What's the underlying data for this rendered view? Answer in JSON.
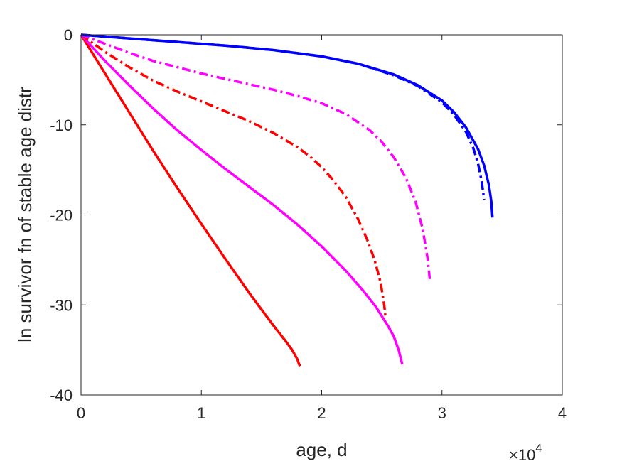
{
  "chart_data": {
    "type": "line",
    "title": "",
    "xlabel": "age, d",
    "ylabel": "ln survivor fn of stable age distr",
    "x_exponent_label": "×10",
    "x_exponent_power": "4",
    "xlim": [
      0,
      40000
    ],
    "ylim": [
      -40,
      0
    ],
    "x_ticks": [
      0,
      10000,
      20000,
      30000,
      40000
    ],
    "x_tick_labels": [
      "0",
      "1",
      "2",
      "3",
      "4"
    ],
    "y_ticks": [
      0,
      -10,
      -20,
      -30,
      -40
    ],
    "y_tick_labels": [
      "0",
      "-10",
      "-20",
      "-30",
      "-40"
    ],
    "grid": false,
    "legend": "none",
    "series": [
      {
        "color": "#ff0000",
        "style": "solid",
        "x": [
          0,
          2000,
          4000,
          6000,
          8000,
          10000,
          12000,
          14000,
          16000,
          17000,
          17500,
          17800,
          18000,
          18100,
          18200
        ],
        "y": [
          0,
          -4.3,
          -8.6,
          -12.9,
          -17.0,
          -21.0,
          -24.9,
          -28.7,
          -32.3,
          -34.0,
          -34.9,
          -35.6,
          -36.1,
          -36.5,
          -36.8
        ]
      },
      {
        "color": "#ff00ff",
        "style": "solid",
        "x": [
          0,
          2000,
          4000,
          6000,
          8000,
          10000,
          12000,
          14000,
          16000,
          18000,
          20000,
          22000,
          23500,
          24500,
          25500,
          26000,
          26400,
          26700
        ],
        "y": [
          0,
          -2.9,
          -5.6,
          -8.2,
          -10.6,
          -12.8,
          -14.9,
          -16.9,
          -18.9,
          -21.1,
          -23.5,
          -26.2,
          -28.5,
          -30.2,
          -32.3,
          -33.5,
          -35.0,
          -36.6
        ]
      },
      {
        "color": "#ff0000",
        "style": "dashdot",
        "x": [
          0,
          2000,
          4000,
          6000,
          8000,
          10000,
          12000,
          14000,
          16000,
          18000,
          19000,
          20000,
          21000,
          22000,
          23000,
          23800,
          24400,
          24900,
          25200,
          25300
        ],
        "y": [
          0,
          -1.9,
          -3.6,
          -5.1,
          -6.3,
          -7.4,
          -8.5,
          -9.6,
          -10.9,
          -12.5,
          -13.5,
          -14.7,
          -16.2,
          -18.0,
          -20.4,
          -22.8,
          -25.0,
          -27.5,
          -30.0,
          -31.3
        ]
      },
      {
        "color": "#ff00ff",
        "style": "dashdot",
        "x": [
          0,
          2000,
          4000,
          6000,
          8000,
          10000,
          12000,
          14000,
          16000,
          18000,
          20000,
          22000,
          24000,
          25000,
          26000,
          27000,
          27800,
          28400,
          28800,
          29000
        ],
        "y": [
          0,
          -1.0,
          -2.0,
          -2.9,
          -3.6,
          -4.3,
          -4.9,
          -5.5,
          -6.1,
          -6.8,
          -7.6,
          -8.8,
          -10.6,
          -11.9,
          -13.6,
          -15.9,
          -18.5,
          -21.6,
          -24.8,
          -27.3
        ]
      },
      {
        "color": "#0000ff",
        "style": "dashdot",
        "x": [
          0,
          4000,
          8000,
          12000,
          16000,
          20000,
          23000,
          26000,
          28000,
          30000,
          31000,
          32000,
          32600,
          33000,
          33300,
          33500
        ],
        "y": [
          0,
          -0.4,
          -0.8,
          -1.2,
          -1.7,
          -2.4,
          -3.2,
          -4.5,
          -5.7,
          -7.5,
          -8.9,
          -10.8,
          -12.6,
          -14.3,
          -16.3,
          -18.3
        ]
      },
      {
        "color": "#0000ff",
        "style": "solid",
        "x": [
          0,
          4000,
          8000,
          12000,
          16000,
          20000,
          23000,
          26000,
          28000,
          30000,
          31000,
          32000,
          33000,
          33500,
          33900,
          34100,
          34200
        ],
        "y": [
          0,
          -0.4,
          -0.8,
          -1.2,
          -1.7,
          -2.4,
          -3.2,
          -4.4,
          -5.6,
          -7.3,
          -8.6,
          -10.3,
          -12.7,
          -14.5,
          -16.7,
          -18.5,
          -20.3
        ]
      }
    ]
  }
}
